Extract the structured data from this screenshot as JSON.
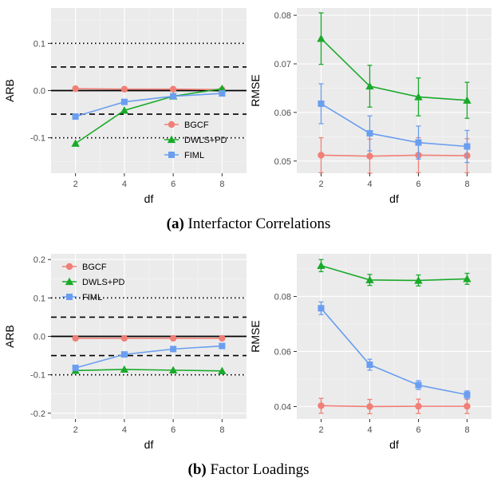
{
  "captions": {
    "a": {
      "label": "(a)",
      "text": " Interfactor Correlations"
    },
    "b": {
      "label": "(b)",
      "text": " Factor Loadings"
    }
  },
  "colors": {
    "BGCF": "#f07f77",
    "DWLS+PD": "#1aaa2a",
    "FIML": "#6a9ef0",
    "panel_bg": "#ebebeb",
    "grid": "#ffffff"
  },
  "chart_data": [
    {
      "id": "a-arb",
      "type": "line",
      "xlabel": "df",
      "ylabel": "ARB",
      "xlim": [
        1,
        9
      ],
      "ylim": [
        -0.175,
        0.175
      ],
      "xticks": [
        2,
        4,
        6,
        8
      ],
      "yticks": [
        -0.1,
        0.0,
        0.1
      ],
      "ytick_labels": [
        "-0.1",
        "0.0",
        "0.1"
      ],
      "ref_lines": [
        {
          "y": 0.0,
          "style": "solid"
        },
        {
          "y": 0.05,
          "style": "dashed"
        },
        {
          "y": -0.05,
          "style": "dashed"
        },
        {
          "y": 0.1,
          "style": "dotted"
        },
        {
          "y": -0.1,
          "style": "dotted"
        }
      ],
      "legend_position": "bottom-right",
      "x": [
        2,
        4,
        6,
        8
      ],
      "series": [
        {
          "name": "BGCF",
          "marker": "circle",
          "values": [
            0.004,
            0.003,
            0.003,
            0.002
          ]
        },
        {
          "name": "DWLS+PD",
          "marker": "triangle",
          "values": [
            -0.112,
            -0.042,
            -0.012,
            0.004
          ]
        },
        {
          "name": "FIML",
          "marker": "square",
          "values": [
            -0.055,
            -0.024,
            -0.012,
            -0.006
          ]
        }
      ]
    },
    {
      "id": "a-rmse",
      "type": "line",
      "xlabel": "df",
      "ylabel": "RMSE",
      "xlim": [
        1,
        9
      ],
      "ylim": [
        0.0475,
        0.0815
      ],
      "xticks": [
        2,
        4,
        6,
        8
      ],
      "yticks": [
        0.05,
        0.06,
        0.07,
        0.08
      ],
      "ytick_labels": [
        "0.05",
        "0.06",
        "0.07",
        "0.08"
      ],
      "x": [
        2,
        4,
        6,
        8
      ],
      "series": [
        {
          "name": "BGCF",
          "marker": "circle",
          "values": [
            0.0512,
            0.051,
            0.0512,
            0.0511
          ],
          "err": [
            0.0036,
            0.0035,
            0.0036,
            0.0035
          ]
        },
        {
          "name": "DWLS+PD",
          "marker": "triangle",
          "values": [
            0.0752,
            0.0654,
            0.0632,
            0.0625
          ],
          "err": [
            0.0053,
            0.0043,
            0.0039,
            0.0037
          ]
        },
        {
          "name": "FIML",
          "marker": "square",
          "values": [
            0.0618,
            0.0557,
            0.0538,
            0.053
          ],
          "err": [
            0.0041,
            0.0036,
            0.0034,
            0.0033
          ]
        }
      ]
    },
    {
      "id": "b-arb",
      "type": "line",
      "xlabel": "df",
      "ylabel": "ARB",
      "xlim": [
        1,
        9
      ],
      "ylim": [
        -0.215,
        0.215
      ],
      "xticks": [
        2,
        4,
        6,
        8
      ],
      "yticks": [
        -0.2,
        -0.1,
        0.0,
        0.1,
        0.2
      ],
      "ytick_labels": [
        "-0.2",
        "-0.1",
        "0.0",
        "0.1",
        "0.2"
      ],
      "ref_lines": [
        {
          "y": 0.0,
          "style": "solid"
        },
        {
          "y": 0.05,
          "style": "dashed"
        },
        {
          "y": -0.05,
          "style": "dashed"
        },
        {
          "y": 0.1,
          "style": "dotted"
        },
        {
          "y": -0.1,
          "style": "dotted"
        }
      ],
      "legend_position": "top-left",
      "x": [
        2,
        4,
        6,
        8
      ],
      "series": [
        {
          "name": "BGCF",
          "marker": "circle",
          "values": [
            -0.005,
            -0.005,
            -0.005,
            -0.005
          ]
        },
        {
          "name": "DWLS+PD",
          "marker": "triangle",
          "values": [
            -0.089,
            -0.086,
            -0.088,
            -0.09
          ]
        },
        {
          "name": "FIML",
          "marker": "square",
          "values": [
            -0.082,
            -0.047,
            -0.033,
            -0.025
          ]
        }
      ]
    },
    {
      "id": "b-rmse",
      "type": "line",
      "xlabel": "df",
      "ylabel": "RMSE",
      "xlim": [
        1,
        9
      ],
      "ylim": [
        0.0355,
        0.0955
      ],
      "xticks": [
        2,
        4,
        6,
        8
      ],
      "yticks": [
        0.04,
        0.06,
        0.08
      ],
      "ytick_labels": [
        "0.04",
        "0.06",
        "0.08"
      ],
      "x": [
        2,
        4,
        6,
        8
      ],
      "series": [
        {
          "name": "BGCF",
          "marker": "circle",
          "values": [
            0.0403,
            0.04,
            0.0401,
            0.0401
          ],
          "err": [
            0.0027,
            0.0026,
            0.0026,
            0.0026
          ]
        },
        {
          "name": "DWLS+PD",
          "marker": "triangle",
          "values": [
            0.0912,
            0.086,
            0.0858,
            0.0864
          ],
          "err": [
            0.0022,
            0.002,
            0.002,
            0.002
          ]
        },
        {
          "name": "FIML",
          "marker": "square",
          "values": [
            0.0757,
            0.0552,
            0.0478,
            0.0443
          ],
          "err": [
            0.0023,
            0.002,
            0.0016,
            0.0014
          ]
        }
      ]
    }
  ]
}
